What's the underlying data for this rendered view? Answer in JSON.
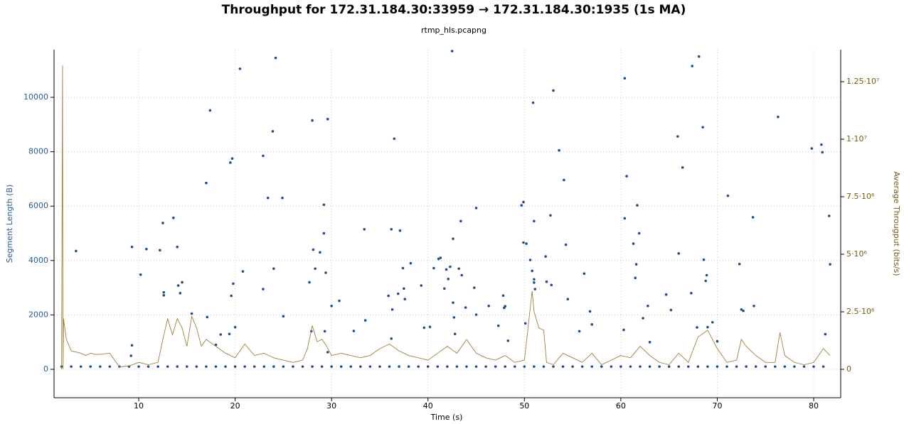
{
  "chart_data": {
    "type": "scatter",
    "title": "Throughput for 172.31.184.30:33959 → 172.31.184.30:1935 (1s MA)",
    "subtitle": "rtmp_hls.pcapng",
    "x_label": "Time (s)",
    "y_label": "Segment Length (B)",
    "y2_label": "Average Througput (bits/s)",
    "xlim": [
      1.22,
      82.8
    ],
    "ylim": [
      -1044,
      11750
    ],
    "y2lim": [
      -1235000,
      13890000
    ],
    "xticks": [
      10,
      20,
      30,
      40,
      50,
      60,
      70,
      80
    ],
    "yticks": [
      0,
      2000,
      4000,
      6000,
      8000,
      10000
    ],
    "y2ticks": [
      0,
      {
        "value": 2500000,
        "label": "2.5·10⁶"
      },
      {
        "value": 5000000,
        "label": "5·10⁶"
      },
      {
        "value": 7500000,
        "label": "7.5·10⁶"
      },
      {
        "value": 10000000,
        "label": "1·10⁷"
      },
      {
        "value": 12500000,
        "label": "1.25·10⁷"
      }
    ],
    "grid": true,
    "series": [
      {
        "name": "Segment Length",
        "type": "scatter",
        "axis": "y",
        "color": "#1f4e8c",
        "x": [
          3.5,
          9.3,
          9.3,
          9.2,
          10.2,
          10.8,
          12.2,
          12.5,
          12.6,
          12.6,
          13.6,
          14,
          14.1,
          14.3,
          14.5,
          15.5,
          17,
          17.1,
          17.4,
          18,
          18.5,
          19.4,
          19.5,
          19.6,
          19.7,
          19.8,
          20,
          20.5,
          20.8,
          22.9,
          22.9,
          23.4,
          23.9,
          24,
          24.2,
          24.9,
          25,
          27.7,
          27.9,
          28,
          28.1,
          28.3,
          28.8,
          29.2,
          29.2,
          29.3,
          29.4,
          29.6,
          29.6,
          30,
          30.8,
          32.3,
          33.4,
          33.5,
          35.9,
          36.2,
          36.2,
          36.3,
          36.5,
          36.9,
          37.1,
          37.4,
          37.5,
          37.6,
          38.2,
          39.3,
          39.6,
          40.2,
          40.6,
          41.1,
          41.3,
          41.7,
          41.9,
          42.1,
          42.3,
          42.5,
          42.6,
          42.6,
          42.7,
          42.8,
          43.2,
          43.4,
          43.5,
          43.9,
          44.8,
          45,
          45,
          46.3,
          47.3,
          47.8,
          47.9,
          48,
          48.3,
          49.7,
          49.9,
          49.9,
          50.2,
          50.1,
          50.6,
          50.8,
          50.9,
          51,
          51,
          51,
          51.1,
          52.2,
          52.3,
          52.7,
          52.8,
          53,
          53.6,
          54.1,
          54.3,
          54.5,
          55.7,
          56.2,
          56.8,
          57,
          60.3,
          60.4,
          60.4,
          60.6,
          61.3,
          61.5,
          61.6,
          61.7,
          61.9,
          62.3,
          62.8,
          63,
          64.7,
          65.2,
          65.9,
          66,
          66.4,
          67.4,
          67.3,
          67.9,
          68.1,
          68.5,
          68.6,
          68.8,
          68.9,
          69,
          69.5,
          70,
          71.1,
          72.3,
          72.5,
          72.7,
          73.7,
          73.8,
          76.3,
          79.8,
          80.8,
          80.9,
          81.2,
          81.6,
          81.7,
          2,
          3,
          4,
          5,
          6,
          7,
          8,
          9,
          10,
          11,
          12,
          13,
          14,
          15,
          16,
          17,
          18,
          19,
          20,
          21,
          22,
          23,
          24,
          25,
          26,
          27,
          28,
          29,
          30,
          31,
          32,
          33,
          34,
          35,
          36,
          37,
          38,
          39,
          40,
          41,
          42,
          43,
          44,
          45,
          46,
          47,
          48,
          49,
          50,
          51,
          52,
          53,
          54,
          55,
          56,
          57,
          58,
          59,
          60,
          61,
          62,
          63,
          64,
          65,
          66,
          67,
          68,
          69,
          70,
          71,
          72,
          73,
          74,
          75,
          76,
          77,
          78,
          79,
          80,
          81
        ],
        "values": [
          4350,
          4500,
          880,
          500,
          3480,
          4420,
          4380,
          5380,
          2830,
          2720,
          5570,
          4500,
          3080,
          2800,
          3200,
          2050,
          6850,
          1920,
          9520,
          900,
          1280,
          1300,
          7600,
          2700,
          7750,
          3150,
          1550,
          11050,
          3600,
          7850,
          2950,
          6300,
          8750,
          3700,
          11450,
          6300,
          1950,
          3200,
          1400,
          9150,
          4400,
          3700,
          4300,
          6050,
          5000,
          1400,
          3550,
          9200,
          630,
          2330,
          2520,
          1410,
          5150,
          1800,
          2700,
          5150,
          1130,
          2200,
          8480,
          2780,
          5100,
          3720,
          2970,
          2580,
          3900,
          3080,
          1530,
          1560,
          3720,
          4060,
          4100,
          2970,
          3670,
          3320,
          3770,
          11700,
          4800,
          2450,
          1910,
          1300,
          3700,
          5450,
          3460,
          2270,
          3000,
          5930,
          2010,
          2330,
          1600,
          2710,
          2260,
          2320,
          1050,
          6030,
          6150,
          4660,
          4620,
          1690,
          4020,
          3620,
          9800,
          3310,
          3190,
          5450,
          2950,
          4150,
          3220,
          5660,
          3100,
          10250,
          8050,
          6960,
          4580,
          2580,
          1400,
          3520,
          2130,
          1650,
          1450,
          5550,
          10700,
          7100,
          4620,
          3360,
          3860,
          6030,
          5000,
          1880,
          2330,
          1000,
          2750,
          2180,
          8560,
          4260,
          7420,
          11150,
          2800,
          1540,
          11500,
          8900,
          4030,
          3250,
          3460,
          1550,
          1730,
          1030,
          6380,
          3870,
          2200,
          2150,
          5590,
          2330,
          9280,
          8120,
          8260,
          7980,
          1290,
          5640,
          3860,
          100,
          100,
          100,
          100,
          100,
          100,
          100,
          100,
          100,
          100,
          100,
          100,
          100,
          100,
          100,
          100,
          100,
          100,
          100,
          100,
          100,
          100,
          100,
          100,
          100,
          100,
          100,
          100,
          100,
          100,
          100,
          100,
          100,
          100,
          100,
          100,
          100,
          100,
          100,
          100,
          100,
          100,
          100,
          100,
          100,
          100,
          100,
          100,
          100,
          100,
          100,
          100,
          100,
          100,
          100,
          100,
          100,
          100,
          100,
          100,
          100,
          100,
          100,
          100,
          100,
          100,
          100,
          100,
          100,
          100,
          100,
          100,
          100,
          100,
          100,
          100,
          100,
          100,
          100,
          100
        ]
      },
      {
        "name": "Average Throughput",
        "type": "line",
        "axis": "y2",
        "color": "#a0803c",
        "x": [
          2.0,
          2.1,
          2.15,
          2.2,
          2.5,
          3,
          4,
          4.5,
          5,
          5.5,
          6,
          7,
          8,
          9,
          10,
          11,
          12,
          12.5,
          13,
          13.5,
          14,
          14.5,
          15,
          15.5,
          16,
          16.5,
          17,
          18,
          19,
          20,
          21,
          22,
          23,
          24,
          25,
          26,
          27,
          27.5,
          28,
          28.5,
          29,
          29.5,
          30,
          31,
          32,
          33,
          34,
          35,
          36,
          37,
          38,
          39,
          40,
          41,
          42,
          43,
          44,
          45,
          46,
          47,
          48,
          49,
          50,
          50.8,
          51,
          51.5,
          52,
          52.3,
          53,
          54,
          55,
          56,
          57,
          58,
          59,
          60,
          61,
          62,
          63,
          64,
          65,
          66,
          67,
          68,
          69,
          70,
          71,
          72,
          72.5,
          73,
          74,
          75,
          76,
          76.5,
          77,
          78,
          79,
          80,
          81,
          81.7
        ],
        "values": [
          0,
          13200000,
          0,
          2200000,
          1300000,
          800000,
          700000,
          600000,
          700000,
          650000,
          650000,
          700000,
          100000,
          150000,
          300000,
          200000,
          300000,
          1300000,
          2200000,
          1500000,
          2200000,
          1800000,
          1000000,
          2300000,
          1800000,
          1000000,
          1300000,
          1000000,
          700000,
          500000,
          1100000,
          600000,
          700000,
          500000,
          400000,
          300000,
          400000,
          900000,
          1900000,
          1200000,
          1300000,
          1000000,
          600000,
          700000,
          600000,
          500000,
          600000,
          900000,
          1100000,
          800000,
          600000,
          500000,
          400000,
          700000,
          1000000,
          700000,
          1300000,
          700000,
          500000,
          400000,
          600000,
          300000,
          400000,
          3400000,
          2500000,
          1800000,
          1700000,
          300000,
          200000,
          700000,
          500000,
          300000,
          700000,
          200000,
          400000,
          600000,
          500000,
          1000000,
          600000,
          300000,
          200000,
          700000,
          300000,
          1400000,
          1700000,
          900000,
          300000,
          400000,
          1300000,
          1000000,
          600000,
          300000,
          300000,
          1600000,
          600000,
          300000,
          200000,
          300000,
          900000,
          600000
        ]
      }
    ]
  }
}
